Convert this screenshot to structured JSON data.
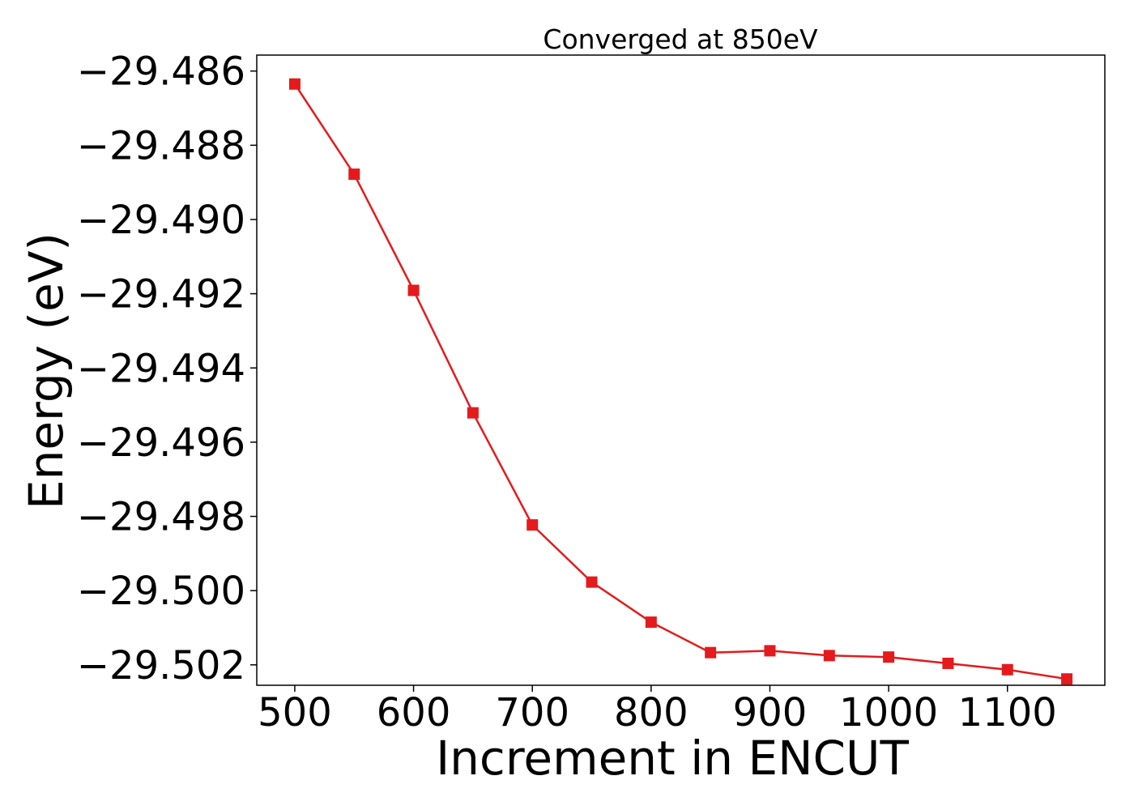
{
  "chart_data": {
    "type": "line",
    "title": "Converged at 850eV",
    "xlabel": "Increment in ENCUT",
    "ylabel": "Energy (eV)",
    "x": [
      500,
      550,
      600,
      650,
      700,
      750,
      800,
      850,
      900,
      950,
      1000,
      1050,
      1100,
      1150
    ],
    "series": [
      {
        "values": [
          -29.48635,
          -29.48878,
          -29.49191,
          -29.49521,
          -29.49823,
          -29.49977,
          -29.50085,
          -29.50167,
          -29.50162,
          -29.50175,
          -29.50179,
          -29.50196,
          -29.50213,
          -29.50238
        ],
        "color": "#e41a1c",
        "marker": "square"
      }
    ],
    "xlim": [
      468,
      1182
    ],
    "ylim": [
      -29.50255,
      -29.48557
    ],
    "xticks": [
      500,
      600,
      700,
      800,
      900,
      1000,
      1100
    ],
    "xtick_labels": [
      "500",
      "600",
      "700",
      "800",
      "900",
      "1000",
      "1100"
    ],
    "yticks": [
      -29.486,
      -29.488,
      -29.49,
      -29.492,
      -29.494,
      -29.496,
      -29.498,
      -29.5,
      -29.502
    ],
    "ytick_labels": [
      "−29.486",
      "−29.488",
      "−29.490",
      "−29.492",
      "−29.494",
      "−29.496",
      "−29.498",
      "−29.500",
      "−29.502"
    ],
    "grid": false,
    "legend": "none"
  }
}
